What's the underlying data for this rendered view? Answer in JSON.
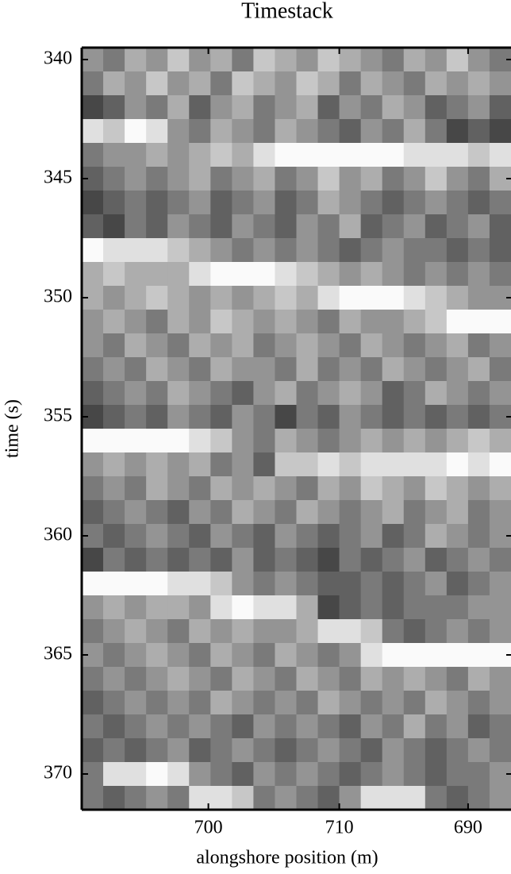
{
  "chart_data": {
    "type": "heatmap",
    "title": "Timestack",
    "xlabel": "alongshore position (m)",
    "ylabel": "time (s)",
    "cmap": "gray",
    "zlim": [
      0,
      9
    ],
    "xlim": [
      0,
      20
    ],
    "xticks": [
      {
        "value": 5.9,
        "label": "700"
      },
      {
        "value": 12,
        "label": "710"
      },
      {
        "value": 18,
        "label": "690"
      }
    ],
    "ylim": [
      339.5,
      371.5
    ],
    "yticks": [
      340,
      345,
      350,
      355,
      360,
      365,
      370
    ],
    "y": [
      340,
      341,
      342,
      343,
      344,
      345,
      346,
      347,
      348,
      349,
      350,
      351,
      352,
      353,
      354,
      355,
      356,
      357,
      358,
      359,
      360,
      361,
      362,
      363,
      364,
      365,
      366,
      367,
      368,
      369,
      370,
      371
    ],
    "z": [
      [
        5,
        4,
        6,
        5,
        7,
        5,
        6,
        4,
        7,
        6,
        5,
        7,
        6,
        5,
        4,
        6,
        5,
        7,
        5,
        4
      ],
      [
        4,
        6,
        5,
        7,
        5,
        6,
        4,
        7,
        6,
        5,
        7,
        6,
        4,
        6,
        5,
        4,
        6,
        5,
        6,
        5
      ],
      [
        2,
        3,
        5,
        4,
        6,
        3,
        5,
        6,
        4,
        5,
        6,
        3,
        5,
        4,
        6,
        5,
        3,
        4,
        5,
        3
      ],
      [
        8,
        7,
        9,
        8,
        5,
        4,
        6,
        5,
        4,
        6,
        5,
        4,
        3,
        5,
        4,
        6,
        4,
        2,
        3,
        2
      ],
      [
        4,
        5,
        5,
        6,
        5,
        6,
        7,
        6,
        8,
        9,
        9,
        9,
        9,
        9,
        9,
        8,
        8,
        8,
        7,
        8
      ],
      [
        3,
        4,
        5,
        4,
        5,
        6,
        4,
        5,
        6,
        4,
        5,
        7,
        5,
        6,
        4,
        5,
        7,
        5,
        4,
        6
      ],
      [
        2,
        3,
        4,
        3,
        4,
        5,
        3,
        4,
        5,
        3,
        4,
        6,
        5,
        4,
        3,
        4,
        5,
        4,
        3,
        4
      ],
      [
        3,
        2,
        4,
        3,
        5,
        4,
        3,
        5,
        4,
        3,
        5,
        4,
        6,
        3,
        4,
        5,
        3,
        4,
        5,
        3
      ],
      [
        9,
        8,
        8,
        8,
        7,
        6,
        5,
        4,
        5,
        4,
        5,
        4,
        3,
        4,
        5,
        4,
        4,
        3,
        4,
        3
      ],
      [
        6,
        7,
        6,
        6,
        6,
        8,
        9,
        9,
        9,
        8,
        7,
        6,
        5,
        6,
        5,
        4,
        5,
        4,
        5,
        4
      ],
      [
        6,
        5,
        6,
        7,
        6,
        5,
        6,
        5,
        6,
        7,
        6,
        8,
        9,
        9,
        9,
        8,
        7,
        6,
        5,
        5
      ],
      [
        5,
        6,
        5,
        4,
        6,
        5,
        7,
        6,
        5,
        6,
        5,
        4,
        6,
        5,
        5,
        6,
        7,
        9,
        9,
        9
      ],
      [
        5,
        4,
        6,
        5,
        4,
        6,
        5,
        6,
        4,
        5,
        6,
        5,
        4,
        6,
        5,
        4,
        5,
        6,
        4,
        5
      ],
      [
        4,
        5,
        4,
        6,
        5,
        4,
        6,
        5,
        5,
        4,
        6,
        4,
        5,
        4,
        6,
        5,
        4,
        5,
        6,
        4
      ],
      [
        3,
        4,
        5,
        4,
        6,
        5,
        4,
        3,
        5,
        6,
        4,
        5,
        6,
        5,
        3,
        4,
        6,
        5,
        4,
        5
      ],
      [
        2,
        3,
        4,
        3,
        5,
        4,
        3,
        5,
        4,
        2,
        4,
        3,
        5,
        4,
        3,
        4,
        3,
        4,
        3,
        4
      ],
      [
        9,
        9,
        9,
        9,
        9,
        8,
        7,
        5,
        4,
        6,
        5,
        4,
        5,
        6,
        5,
        6,
        5,
        6,
        7,
        6
      ],
      [
        5,
        6,
        5,
        6,
        5,
        6,
        4,
        5,
        3,
        7,
        7,
        8,
        7,
        8,
        8,
        8,
        8,
        9,
        8,
        9
      ],
      [
        4,
        5,
        4,
        6,
        5,
        4,
        6,
        5,
        6,
        5,
        4,
        6,
        5,
        7,
        6,
        5,
        7,
        6,
        5,
        6
      ],
      [
        3,
        4,
        5,
        4,
        3,
        5,
        4,
        6,
        5,
        4,
        6,
        5,
        4,
        5,
        6,
        4,
        5,
        6,
        4,
        5
      ],
      [
        4,
        3,
        4,
        5,
        4,
        3,
        5,
        4,
        3,
        5,
        4,
        3,
        4,
        5,
        3,
        4,
        6,
        5,
        4,
        5
      ],
      [
        2,
        4,
        3,
        4,
        3,
        4,
        3,
        5,
        3,
        4,
        3,
        2,
        4,
        3,
        4,
        5,
        3,
        4,
        5,
        4
      ],
      [
        9,
        9,
        9,
        9,
        8,
        8,
        7,
        5,
        4,
        5,
        4,
        3,
        3,
        4,
        3,
        4,
        5,
        3,
        4,
        5
      ],
      [
        5,
        6,
        5,
        6,
        6,
        5,
        8,
        9,
        8,
        8,
        6,
        2,
        3,
        4,
        3,
        4,
        4,
        4,
        5,
        5
      ],
      [
        4,
        5,
        6,
        5,
        4,
        6,
        5,
        6,
        5,
        5,
        6,
        8,
        8,
        7,
        4,
        3,
        4,
        5,
        4,
        5
      ],
      [
        5,
        4,
        5,
        6,
        5,
        4,
        6,
        5,
        4,
        6,
        5,
        4,
        5,
        8,
        9,
        9,
        9,
        9,
        9,
        9
      ],
      [
        4,
        5,
        4,
        5,
        6,
        5,
        4,
        6,
        5,
        4,
        6,
        5,
        4,
        6,
        5,
        6,
        5,
        4,
        6,
        5
      ],
      [
        3,
        4,
        5,
        4,
        5,
        4,
        6,
        5,
        4,
        5,
        4,
        6,
        5,
        4,
        5,
        4,
        6,
        5,
        4,
        5
      ],
      [
        4,
        3,
        4,
        5,
        4,
        5,
        4,
        3,
        5,
        4,
        5,
        4,
        3,
        5,
        4,
        6,
        4,
        5,
        3,
        4
      ],
      [
        3,
        4,
        3,
        4,
        5,
        3,
        4,
        5,
        4,
        3,
        4,
        5,
        4,
        3,
        5,
        4,
        3,
        4,
        5,
        4
      ],
      [
        4,
        8,
        8,
        9,
        8,
        5,
        4,
        3,
        5,
        4,
        5,
        4,
        3,
        4,
        5,
        4,
        3,
        4,
        4,
        5
      ],
      [
        4,
        3,
        4,
        5,
        4,
        8,
        8,
        7,
        4,
        5,
        4,
        3,
        5,
        8,
        8,
        8,
        4,
        3,
        4,
        5
      ]
    ]
  }
}
